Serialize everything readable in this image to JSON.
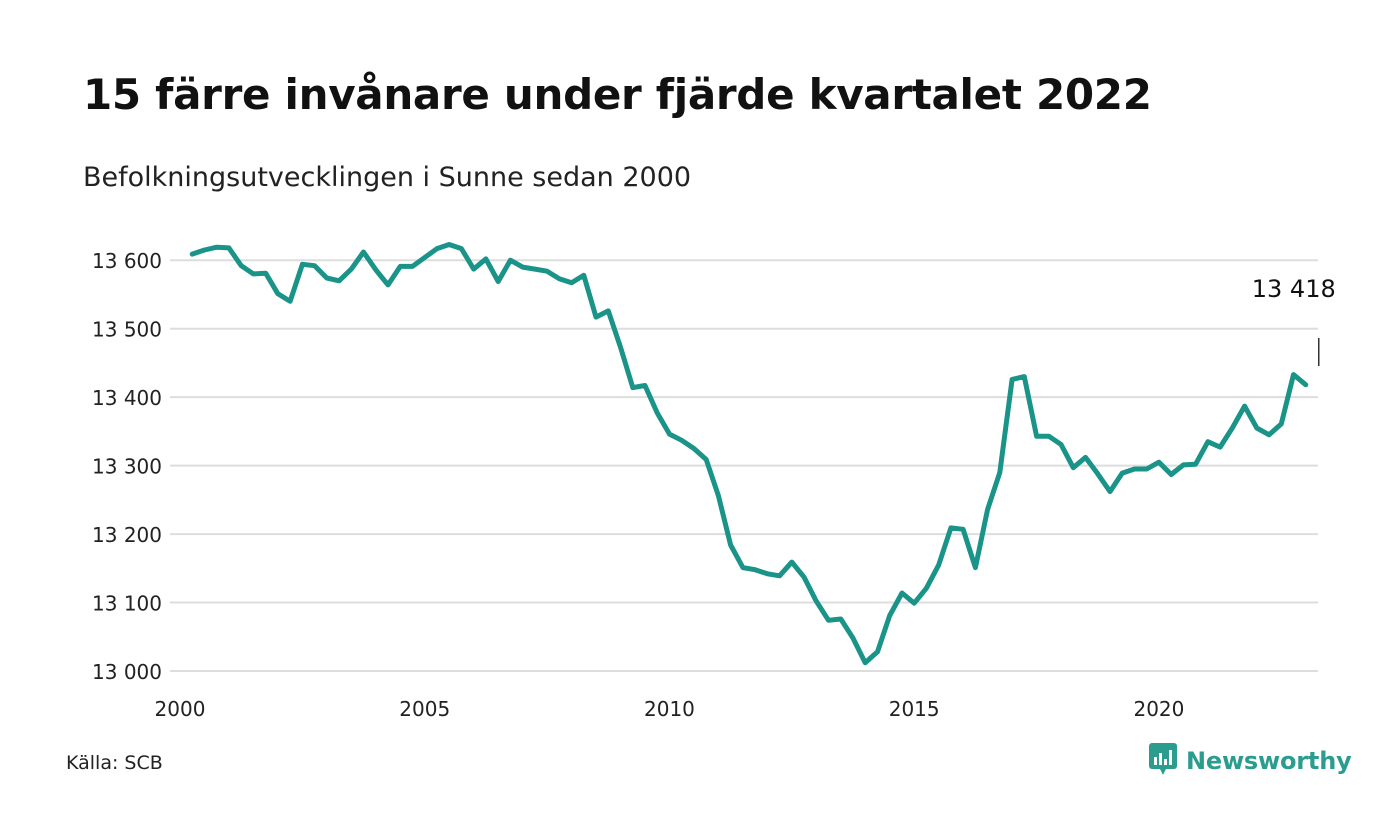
{
  "header": {
    "title": "15 färre invånare under fjärde kvartalet 2022",
    "subtitle": "Befolkningsutvecklingen i Sunne sedan 2000"
  },
  "footer": {
    "source": "Källa: SCB",
    "brand_name": "Newsworthy",
    "brand_icon": "newsworthy-logo-icon"
  },
  "colors": {
    "line": "#1a9488",
    "grid": "#dddddd",
    "brand": "#2b9d8f"
  },
  "chart_data": {
    "type": "line",
    "title": "15 färre invånare under fjärde kvartalet 2022",
    "subtitle": "Befolkningsutvecklingen i Sunne sedan 2000",
    "xlabel": "",
    "ylabel": "",
    "xlim": [
      2000,
      2023.25
    ],
    "ylim": [
      13000,
      13650
    ],
    "grid": true,
    "x_ticks": [
      2000,
      2005,
      2010,
      2015,
      2020
    ],
    "x_tick_labels": [
      "2000",
      "2005",
      "2010",
      "2015",
      "2020"
    ],
    "y_ticks": [
      13000,
      13100,
      13200,
      13300,
      13400,
      13500,
      13600
    ],
    "y_tick_labels": [
      "13 000",
      "13 100",
      "13 200",
      "13 300",
      "13 400",
      "13 500",
      "13 600"
    ],
    "annotation": {
      "x": 2023.0,
      "y": 13418,
      "label": "13 418"
    },
    "series": [
      {
        "x": [
          2000.25,
          2000.5,
          2000.75,
          2001,
          2001.25,
          2001.5,
          2001.75,
          2002,
          2002.25,
          2002.5,
          2002.75,
          2003,
          2003.25,
          2003.5,
          2003.75,
          2004,
          2004.25,
          2004.5,
          2004.75,
          2005,
          2005.25,
          2005.5,
          2005.75,
          2006,
          2006.25,
          2006.5,
          2006.75,
          2007,
          2007.25,
          2007.5,
          2007.75,
          2008,
          2008.25,
          2008.5,
          2008.75,
          2009,
          2009.25,
          2009.5,
          2009.75,
          2010,
          2010.25,
          2010.5,
          2010.75,
          2011,
          2011.25,
          2011.5,
          2011.75,
          2012,
          2012.25,
          2012.5,
          2012.75,
          2013,
          2013.25,
          2013.5,
          2013.75,
          2014,
          2014.25,
          2014.5,
          2014.75,
          2015,
          2015.25,
          2015.5,
          2015.75,
          2016,
          2016.25,
          2016.5,
          2016.75,
          2017,
          2017.25,
          2017.5,
          2017.75,
          2018,
          2018.25,
          2018.5,
          2018.75,
          2019,
          2019.25,
          2019.5,
          2019.75,
          2020,
          2020.25,
          2020.5,
          2020.75,
          2021,
          2021.25,
          2021.5,
          2021.75,
          2022,
          2022.25,
          2022.5,
          2022.75,
          2023
        ],
        "values": [
          13609,
          13615,
          13619,
          13618,
          13592,
          13580,
          13581,
          13551,
          13540,
          13594,
          13592,
          13574,
          13570,
          13587,
          13612,
          13586,
          13564,
          13591,
          13591,
          13604,
          13617,
          13623,
          13617,
          13587,
          13602,
          13569,
          13600,
          13590,
          13587,
          13584,
          13573,
          13567,
          13578,
          13517,
          13526,
          13473,
          13414,
          13417,
          13377,
          13346,
          13337,
          13325,
          13309,
          13256,
          13184,
          13151,
          13148,
          13142,
          13139,
          13159,
          13137,
          13102,
          13074,
          13076,
          13048,
          13012,
          13028,
          13081,
          13114,
          13099,
          13121,
          13155,
          13209,
          13207,
          13151,
          13236,
          13290,
          13426,
          13430,
          13343,
          13343,
          13331,
          13297,
          13312,
          13288,
          13262,
          13289,
          13295,
          13295,
          13305,
          13287,
          13301,
          13302,
          13335,
          13327,
          13355,
          13387,
          13355,
          13345,
          13361,
          13433,
          13418
        ]
      }
    ]
  }
}
